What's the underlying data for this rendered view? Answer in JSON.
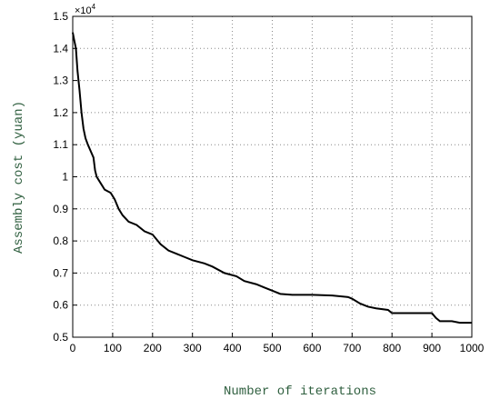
{
  "chart_data": {
    "type": "line",
    "ylabel": "Assembly cost (yuan)",
    "xlabel": "Number of iterations",
    "y_multiplier": {
      "base": "×10",
      "exponent": "4"
    },
    "x": [
      0,
      3,
      8,
      12,
      17,
      22,
      27,
      32,
      38,
      45,
      52,
      56,
      60,
      70,
      80,
      95,
      105,
      115,
      125,
      140,
      160,
      180,
      200,
      220,
      240,
      260,
      280,
      300,
      330,
      350,
      380,
      410,
      430,
      460,
      480,
      500,
      520,
      550,
      600,
      650,
      690,
      700,
      720,
      740,
      760,
      790,
      800,
      850,
      900,
      910,
      920,
      950,
      970,
      1000
    ],
    "series": [
      {
        "name": "cost",
        "color": "#000000",
        "values": [
          1.45,
          1.43,
          1.4,
          1.33,
          1.27,
          1.2,
          1.15,
          1.12,
          1.1,
          1.08,
          1.06,
          1.02,
          1.0,
          0.98,
          0.96,
          0.95,
          0.93,
          0.9,
          0.88,
          0.86,
          0.85,
          0.83,
          0.82,
          0.79,
          0.77,
          0.76,
          0.75,
          0.74,
          0.73,
          0.72,
          0.7,
          0.69,
          0.675,
          0.665,
          0.655,
          0.645,
          0.635,
          0.632,
          0.632,
          0.63,
          0.625,
          0.62,
          0.605,
          0.595,
          0.59,
          0.585,
          0.575,
          0.575,
          0.575,
          0.56,
          0.55,
          0.55,
          0.545,
          0.545
        ]
      }
    ],
    "xlim": [
      0,
      1000
    ],
    "xticks": [
      0,
      100,
      200,
      300,
      400,
      500,
      600,
      700,
      800,
      900,
      1000
    ],
    "ylim": [
      0.5,
      1.5
    ],
    "yticks": [
      0.5,
      0.6,
      0.7,
      0.8,
      0.9,
      1,
      1.1,
      1.2,
      1.3,
      1.4,
      1.5
    ],
    "grid": true
  }
}
